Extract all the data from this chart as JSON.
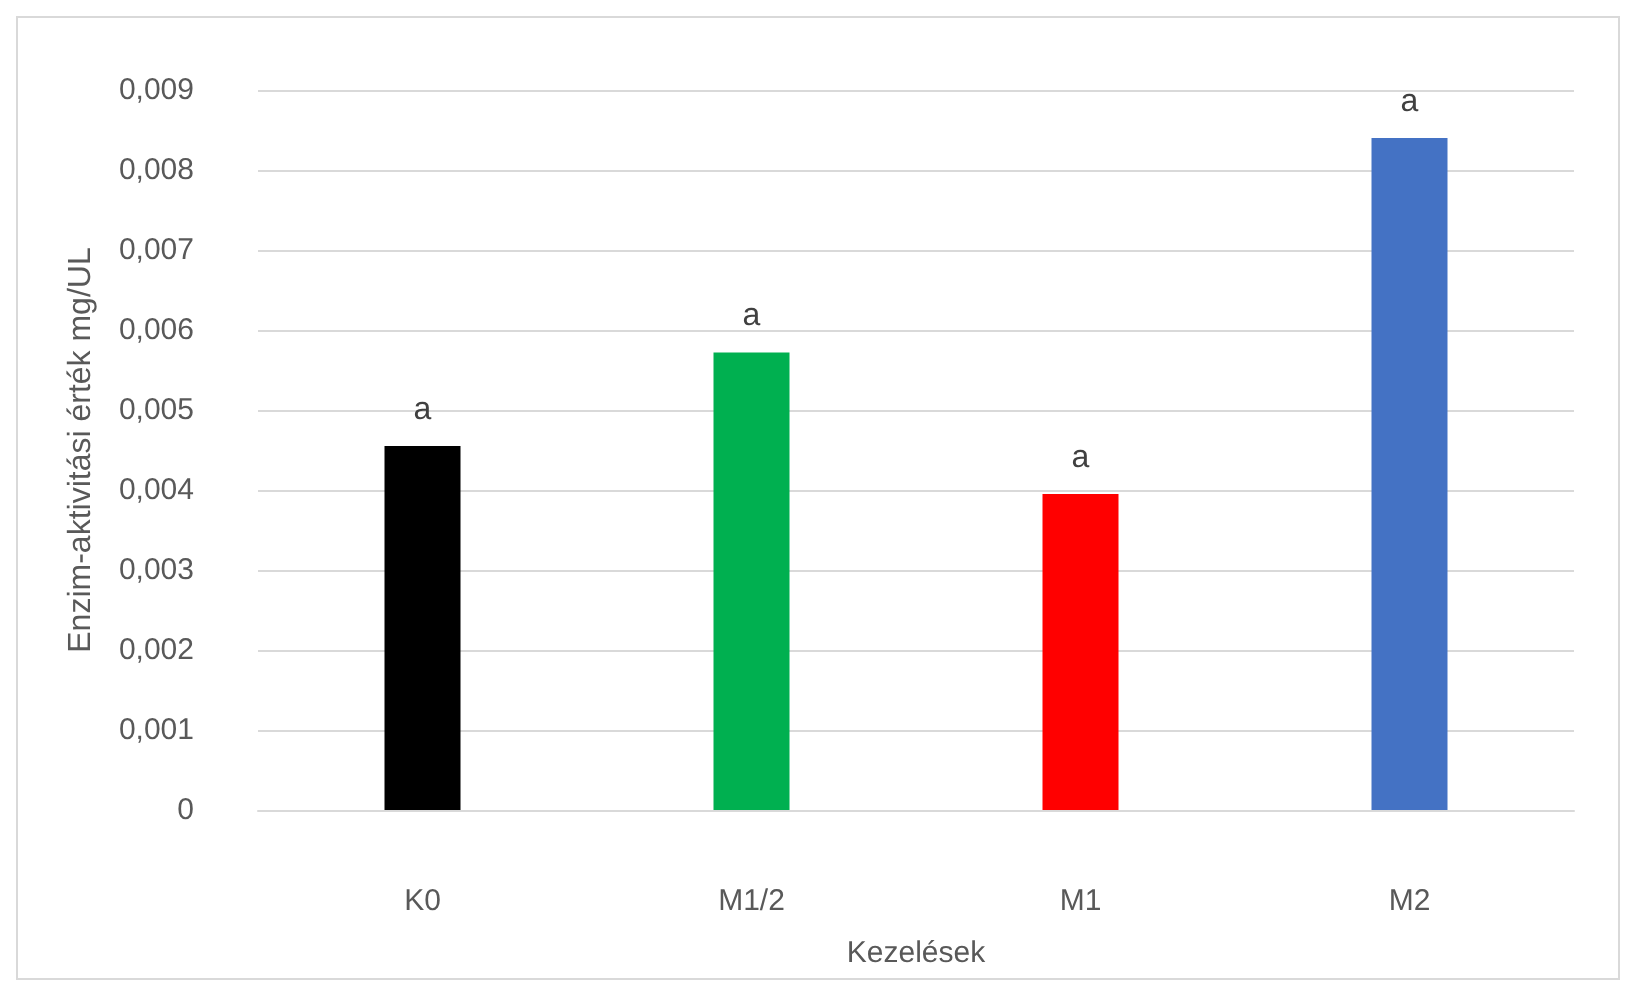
{
  "chart_data": {
    "type": "bar",
    "xlabel": "Kezelések",
    "ylabel": "Enzim-aktivitási érték mg/UL",
    "categories": [
      "K0",
      "M1/2",
      "M1",
      "M2"
    ],
    "values": [
      0.00455,
      0.00572,
      0.00395,
      0.0084
    ],
    "colors": [
      "#000000",
      "#00b050",
      "#ff0000",
      "#4472c4"
    ],
    "value_labels": [
      "a",
      "a",
      "a",
      "a"
    ],
    "ylim": [
      0,
      0.009
    ],
    "yticks": [
      0,
      {
        "value": 0.001,
        "label": "0,001"
      },
      {
        "value": 0.002,
        "label": "0,002"
      },
      {
        "value": 0.003,
        "label": "0,003"
      },
      {
        "value": 0.004,
        "label": "0,004"
      },
      {
        "value": 0.005,
        "label": "0,005"
      },
      {
        "value": 0.006,
        "label": "0,006"
      },
      {
        "value": 0.007,
        "label": "0,007"
      },
      {
        "value": 0.008,
        "label": "0,008"
      },
      {
        "value": 0.009,
        "label": "0,009"
      }
    ],
    "grid": "y"
  }
}
